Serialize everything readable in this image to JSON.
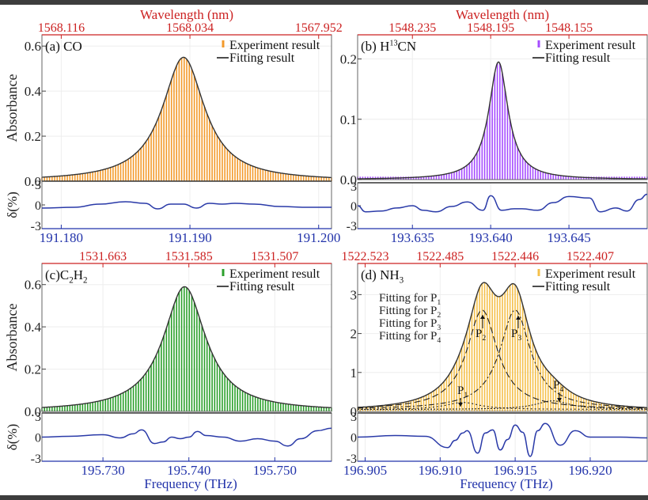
{
  "chart_data": [
    {
      "id": "a",
      "type": "bar",
      "panel_label": "(a) CO",
      "label_parts": [
        {
          "t": "(a) CO",
          "s": ""
        }
      ],
      "title": "",
      "top_axis_title": "Wavelength (nm)",
      "top_ticks": [
        "1568.116",
        "1568.034",
        "1567.952"
      ],
      "top_tick_x": [
        191.18,
        191.19,
        191.2
      ],
      "xlabel": "",
      "ylabel": "Absorbance",
      "residual_ylabel": "δ(%)",
      "xlim": [
        191.1785,
        191.201
      ],
      "ylim": [
        0,
        0.65
      ],
      "yticks": [
        0.0,
        0.2,
        0.4,
        0.6
      ],
      "ytick_labels": [
        "0.0",
        "0.2",
        "0.4",
        "0.6"
      ],
      "xticks": [
        191.18,
        191.19,
        191.2
      ],
      "xtick_labels": [
        "191.180",
        "191.190",
        "191.200"
      ],
      "residual_ylim": [
        -3,
        3
      ],
      "residual_yticks": [
        -3,
        0,
        3
      ],
      "bar_color": "#f39a2b",
      "peak": {
        "center": 191.1895,
        "amplitude": 0.55,
        "hwhm": 0.002
      },
      "legend": [
        {
          "label": "Experiment result",
          "marker": "bar"
        },
        {
          "label": "Fitting result",
          "marker": "line"
        }
      ],
      "legend_position": "top-right",
      "residual": {
        "x": [
          191.1785,
          191.181,
          191.183,
          191.185,
          191.1865,
          191.1875,
          191.1885,
          191.1895,
          191.1905,
          191.1915,
          191.1925,
          191.1935,
          191.195,
          191.197,
          191.199,
          191.201
        ],
        "y": [
          -0.4,
          -0.3,
          0.1,
          0.4,
          0.2,
          -0.5,
          0.1,
          0.1,
          -0.4,
          0.2,
          0.1,
          0.2,
          0.1,
          -0.2,
          -0.3,
          -0.3
        ]
      }
    },
    {
      "id": "b",
      "type": "bar",
      "panel_label": "(b) H13CN",
      "label_parts": [
        {
          "t": "(b) H",
          "s": ""
        },
        {
          "t": "13",
          "s": "sup"
        },
        {
          "t": "CN",
          "s": ""
        }
      ],
      "title": "",
      "top_axis_title": "Wavelength (nm)",
      "top_ticks": [
        "1548.235",
        "1548.195",
        "1548.155"
      ],
      "top_tick_x": [
        193.635,
        193.64,
        193.645
      ],
      "xlabel": "",
      "ylabel": "",
      "residual_ylabel": "",
      "xlim": [
        193.6315,
        193.65
      ],
      "ylim": [
        0,
        0.24
      ],
      "yticks": [
        0.0,
        0.1,
        0.2
      ],
      "ytick_labels": [
        "0.0",
        "0.1",
        "0.2"
      ],
      "xticks": [
        193.635,
        193.64,
        193.645
      ],
      "xtick_labels": [
        "193.635",
        "193.640",
        "193.645"
      ],
      "residual_ylim": [
        -3,
        3
      ],
      "residual_yticks": [
        -3,
        0,
        3
      ],
      "bar_color": "#a64dff",
      "peak": {
        "center": 193.6405,
        "amplitude": 0.195,
        "hwhm": 0.00075
      },
      "legend": [
        {
          "label": "Experiment result",
          "marker": "bar"
        },
        {
          "label": "Fitting result",
          "marker": "line"
        }
      ],
      "legend_position": "top-right",
      "residual": {
        "x": [
          193.6315,
          193.632,
          193.633,
          193.634,
          193.635,
          193.6357,
          193.6365,
          193.6375,
          193.6385,
          193.6395,
          193.64,
          193.6407,
          193.6415,
          193.642,
          193.643,
          193.644,
          193.645,
          193.6463,
          193.647,
          193.648,
          193.6487,
          193.6495,
          193.65
        ],
        "y": [
          0.0,
          -0.8,
          -0.7,
          -0.3,
          0.0,
          -0.6,
          -0.8,
          -0.1,
          0.5,
          -0.6,
          1.3,
          -0.6,
          -0.4,
          -0.4,
          -0.6,
          0.4,
          1.2,
          1.0,
          -0.8,
          -0.3,
          -0.7,
          0.8,
          1.5
        ]
      }
    },
    {
      "id": "c",
      "type": "bar",
      "panel_label": "(c) C2H2",
      "label_parts": [
        {
          "t": "(c)C",
          "s": ""
        },
        {
          "t": "2",
          "s": "sub"
        },
        {
          "t": "H",
          "s": ""
        },
        {
          "t": "2",
          "s": "sub"
        }
      ],
      "title": "",
      "top_axis_title": "",
      "top_ticks": [
        "1531.663",
        "1531.585",
        "1531.507"
      ],
      "top_tick_x": [
        195.73,
        195.74,
        195.75
      ],
      "xlabel": "Frequency (THz)",
      "ylabel": "Absorbance",
      "residual_ylabel": "δ(%)",
      "xlim": [
        195.7229,
        195.7566
      ],
      "ylim": [
        0,
        0.7
      ],
      "yticks": [
        0.0,
        0.2,
        0.4,
        0.6
      ],
      "ytick_labels": [
        "0.0",
        "0.2",
        "0.4",
        "0.6"
      ],
      "xticks": [
        195.73,
        195.74,
        195.75
      ],
      "xtick_labels": [
        "195.730",
        "195.740",
        "195.750"
      ],
      "residual_ylim": [
        -3,
        3
      ],
      "residual_yticks": [
        -3,
        0,
        3
      ],
      "bar_color": "#2ca02c",
      "peak": {
        "center": 195.7395,
        "amplitude": 0.59,
        "hwhm": 0.003
      },
      "legend": [
        {
          "label": "Experiment result",
          "marker": "bar"
        },
        {
          "label": "Fitting result",
          "marker": "line"
        }
      ],
      "legend_position": "top-right",
      "residual": {
        "x": [
          195.7229,
          195.726,
          195.73,
          195.732,
          195.7335,
          195.7345,
          195.736,
          195.737,
          195.738,
          195.739,
          195.74,
          195.741,
          195.742,
          195.744,
          195.746,
          195.748,
          195.75,
          195.7515,
          195.753,
          195.755,
          195.7566
        ],
        "y": [
          0.0,
          0.1,
          0.3,
          -0.1,
          0.4,
          0.9,
          -0.8,
          -0.6,
          0.0,
          -0.2,
          0.0,
          0.7,
          0.2,
          0.0,
          -0.5,
          -0.2,
          -0.5,
          -1.1,
          -0.2,
          0.8,
          1.1
        ]
      }
    },
    {
      "id": "d",
      "type": "bar",
      "panel_label": "(d) NH3",
      "label_parts": [
        {
          "t": "(d) NH",
          "s": ""
        },
        {
          "t": "3",
          "s": "sub"
        }
      ],
      "title": "",
      "top_axis_title": "",
      "top_ticks": [
        "1522.523",
        "1522.485",
        "1522.446",
        "1522.407"
      ],
      "top_tick_x": [
        196.905,
        196.91,
        196.915,
        196.92
      ],
      "xlabel": "Frequency (THz)",
      "ylabel": "",
      "residual_ylabel": "",
      "xlim": [
        196.9045,
        196.9238
      ],
      "ylim": [
        0,
        3.8
      ],
      "yticks": [
        0,
        1,
        2,
        3
      ],
      "ytick_labels": [
        "0",
        "1",
        "2",
        "3"
      ],
      "xticks": [
        196.905,
        196.91,
        196.915,
        196.92
      ],
      "xtick_labels": [
        "196.905",
        "196.910",
        "196.915",
        "196.920"
      ],
      "residual_ylim": [
        -3,
        3
      ],
      "residual_yticks": [
        -3,
        0,
        3
      ],
      "bar_color": "#f5c04a",
      "components": [
        {
          "name": "P1",
          "center": 196.9115,
          "amplitude": 0.18,
          "hwhm": 0.0014,
          "dash": "2,3"
        },
        {
          "name": "P2",
          "center": 196.9128,
          "amplitude": 2.55,
          "hwhm": 0.00125,
          "dash": "8,4"
        },
        {
          "name": "P3",
          "center": 196.915,
          "amplitude": 2.55,
          "hwhm": 0.00125,
          "dash": "7,3,2,3"
        },
        {
          "name": "P4",
          "center": 196.9175,
          "amplitude": 0.22,
          "hwhm": 0.0014,
          "dash": "2,2"
        }
      ],
      "component_legend": [
        {
          "label_parts": [
            {
              "t": "Fitting for P",
              "s": ""
            },
            {
              "t": "1",
              "s": "sub"
            }
          ]
        },
        {
          "label_parts": [
            {
              "t": "Fitting for P",
              "s": ""
            },
            {
              "t": "2",
              "s": "sub"
            }
          ]
        },
        {
          "label_parts": [
            {
              "t": "Fitting for P",
              "s": ""
            },
            {
              "t": "3",
              "s": "sub"
            }
          ]
        },
        {
          "label_parts": [
            {
              "t": "Fitting for P",
              "s": ""
            },
            {
              "t": "4",
              "s": "sub"
            }
          ]
        }
      ],
      "annotations": [
        "P1",
        "P2",
        "P3",
        "P4"
      ],
      "legend": [
        {
          "label": "Experiment result",
          "marker": "bar"
        },
        {
          "label": "Fitting result",
          "marker": "line"
        }
      ],
      "legend_position": "top-right",
      "residual": {
        "x": [
          196.9045,
          196.907,
          196.909,
          196.9105,
          196.911,
          196.9115,
          196.9118,
          196.9125,
          196.913,
          196.9135,
          196.914,
          196.9145,
          196.915,
          196.9155,
          196.916,
          196.9165,
          196.917,
          196.918,
          196.919,
          196.92,
          196.922,
          196.9238
        ],
        "y": [
          0.0,
          0.2,
          0.1,
          -1.3,
          -0.4,
          0.5,
          0.8,
          -2.0,
          0.5,
          0.9,
          -1.6,
          -0.3,
          1.5,
          0.6,
          -2.4,
          0.8,
          1.7,
          -1.0,
          0.8,
          0.0,
          0.0,
          -0.1
        ]
      }
    }
  ],
  "colors": {
    "top_axis": "#cc2222",
    "bottom_axis": "#2233aa",
    "residual_line": "#2a3aa8",
    "fit_line": "#333333"
  }
}
